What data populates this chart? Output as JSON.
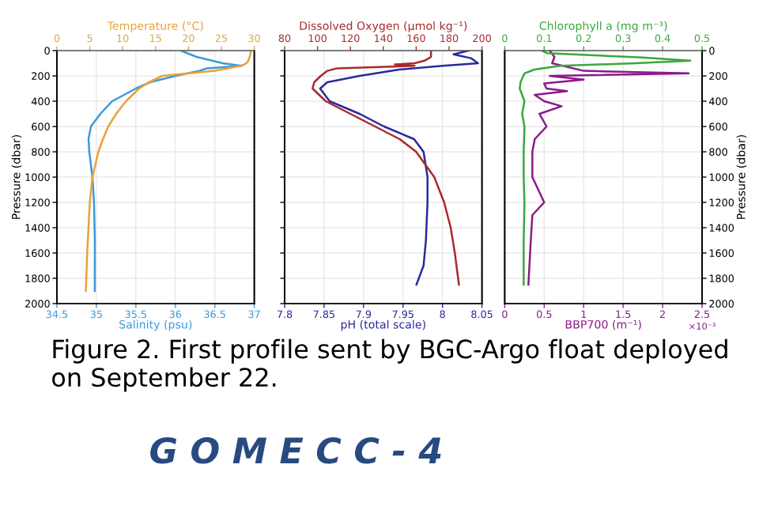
{
  "chart_data": [
    {
      "type": "line",
      "xlabel": "Salinity (psu)",
      "x2label": "Temperature (°C)",
      "ylabel": "Pressure (dbar)",
      "xlim": [
        34.5,
        37
      ],
      "xticks": [
        34.5,
        35,
        35.5,
        36,
        36.5,
        37
      ],
      "x2lim": [
        0,
        30
      ],
      "x2ticks": [
        0,
        5,
        10,
        15,
        20,
        25,
        30
      ],
      "ylim": [
        2000,
        0
      ],
      "yticks": [
        0,
        200,
        400,
        600,
        800,
        1000,
        1200,
        1400,
        1600,
        1800,
        2000
      ],
      "grid": true,
      "series": [
        {
          "color": "#e8a23a",
          "axis": "x2",
          "x": [
            29.5,
            29.3,
            29,
            28.5,
            27,
            24,
            16,
            14,
            12.5,
            10.5,
            9,
            7.8,
            7,
            6.3,
            5.4,
            5,
            4.8,
            4.6,
            4.4
          ],
          "values": [
            0,
            50,
            90,
            110,
            130,
            160,
            200,
            250,
            300,
            400,
            500,
            600,
            700,
            800,
            1000,
            1200,
            1400,
            1600,
            1900
          ]
        },
        {
          "color": "#3a9ad9",
          "x": [
            36.07,
            36.27,
            36.6,
            36.84,
            36.4,
            36.3,
            36.0,
            35.68,
            35.5,
            35.2,
            35.05,
            34.93,
            34.9,
            34.91,
            34.95,
            34.97,
            34.98,
            34.98
          ],
          "values": [
            0,
            50,
            100,
            120,
            140,
            160,
            200,
            250,
            300,
            400,
            500,
            600,
            700,
            800,
            1000,
            1200,
            1500,
            1900
          ]
        }
      ],
      "annotations": [
        "Figure 2. First profile sent by BGC-Argo float deployed on September 22.",
        "G O M E C C - 4"
      ]
    },
    {
      "type": "line",
      "xlabel": "pH (total scale)",
      "x2label": "Dissolved Oxygen (µmol kg⁻¹)",
      "xlim": [
        7.8,
        8.05
      ],
      "xticks": [
        7.8,
        7.85,
        7.9,
        7.95,
        8,
        8.05
      ],
      "x2lim": [
        80,
        200
      ],
      "x2ticks": [
        80,
        100,
        120,
        140,
        160,
        180,
        200
      ],
      "ylim": [
        2000,
        0
      ],
      "yticks": [
        0,
        200,
        400,
        600,
        800,
        1000,
        1200,
        1400,
        1600,
        1800,
        2000
      ],
      "grid": true,
      "tick_labels": "x",
      "series": [
        {
          "color": "#a82a2e",
          "axis": "x2",
          "x": [
            169,
            169,
            165,
            159,
            147,
            159,
            112,
            106,
            102,
            98,
            97,
            105,
            120,
            135,
            150,
            160,
            171,
            177,
            181,
            183.5,
            186
          ],
          "values": [
            0,
            50,
            80,
            100,
            110,
            120,
            140,
            160,
            200,
            250,
            300,
            400,
            500,
            600,
            700,
            800,
            1000,
            1200,
            1400,
            1600,
            1850
          ]
        },
        {
          "color": "#2a2a9e",
          "x": [
            8.033,
            8.014,
            8.036,
            8.045,
            8.0,
            7.945,
            7.895,
            7.854,
            7.845,
            7.857,
            7.895,
            7.926,
            7.964,
            7.976,
            7.981,
            7.981,
            7.979,
            7.976,
            7.967
          ],
          "values": [
            0,
            30,
            60,
            100,
            120,
            150,
            200,
            250,
            300,
            400,
            500,
            600,
            700,
            800,
            1000,
            1200,
            1500,
            1700,
            1850
          ]
        }
      ]
    },
    {
      "type": "line",
      "xlabel": "BBP700 (m⁻¹)",
      "x2label": "Chlorophyll a (mg m⁻³)",
      "ylabel": "Pressure (dbar)",
      "xlim": [
        0,
        2.5
      ],
      "xticks": [
        0,
        0.5,
        1,
        1.5,
        2,
        2.5
      ],
      "x2lim": [
        0,
        0.5
      ],
      "x2ticks": [
        0,
        0.1,
        0.2,
        0.3,
        0.4,
        0.5
      ],
      "ylim": [
        2000,
        0
      ],
      "yticks": [
        0,
        200,
        400,
        600,
        800,
        1000,
        1200,
        1400,
        1600,
        1800,
        2000
      ],
      "grid": true,
      "series": [
        {
          "color": "#3aa83a",
          "axis": "x2",
          "x": [
            0.094,
            0.107,
            0.35,
            0.47,
            0.33,
            0.14,
            0.075,
            0.05,
            0.04,
            0.038,
            0.05,
            0.044,
            0.05,
            0.048,
            0.048,
            0.05,
            0.048,
            0.048
          ],
          "values": [
            0,
            20,
            55,
            80,
            100,
            120,
            150,
            180,
            250,
            300,
            400,
            500,
            600,
            800,
            1000,
            1200,
            1500,
            1850
          ]
        },
        {
          "color": "#8b1a8b",
          "x": [
            0.57,
            0.63,
            0.6,
            1.0,
            2.33,
            0.57,
            1.0,
            0.5,
            0.53,
            0.79,
            0.38,
            0.5,
            0.72,
            0.44,
            0.53,
            0.38,
            0.35,
            0.35,
            0.5,
            0.35,
            0.33,
            0.3
          ],
          "values": [
            0,
            50,
            100,
            160,
            180,
            200,
            230,
            260,
            300,
            320,
            350,
            400,
            440,
            500,
            600,
            700,
            800,
            1000,
            1200,
            1300,
            1500,
            1850
          ]
        }
      ],
      "annotations": [
        "×10⁻³"
      ]
    }
  ]
}
